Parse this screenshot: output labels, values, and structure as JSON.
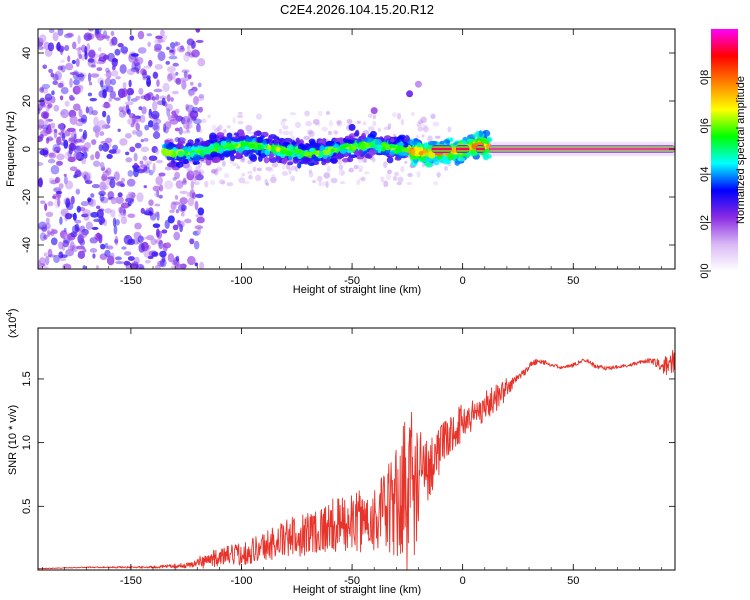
{
  "title": "C2E4.2026.104.15.20.R12",
  "chart_data": [
    {
      "type": "heatmap",
      "xlabel": "Height of straight line (km)",
      "ylabel": "Frequency (Hz)",
      "xlim": [
        -192,
        96
      ],
      "ylim": [
        -50,
        50
      ],
      "xticks": [
        -150,
        -100,
        -50,
        0,
        50
      ],
      "xtick_labels": [
        "-150",
        "-100",
        "-50",
        "0",
        "50"
      ],
      "yticks": [
        -40,
        -20,
        0,
        20,
        40
      ],
      "ytick_labels": [
        "-40",
        "-20",
        "0",
        "20",
        "40"
      ],
      "colorbar": {
        "label": "Normalized spectral amplitude",
        "range": [
          0.0,
          1.0
        ],
        "ticks": [
          0.0,
          0.2,
          0.4,
          0.6,
          0.8
        ],
        "tick_labels": [
          "0.0",
          "0.2",
          "0.4",
          "0.6",
          "0.8"
        ],
        "colormap": [
          "#ffffff",
          "#d9b8f5",
          "#8a2be2",
          "#0000ff",
          "#00ffff",
          "#00ff00",
          "#ffff00",
          "#ff8000",
          "#ff0000",
          "#ff00ff"
        ]
      },
      "features": {
        "scatter_noise_x_range": [
          -192,
          -118
        ],
        "band_center_hz": 0,
        "band_halfwidth_hz": 3,
        "band_start_km": -135,
        "strong_line_start_km": 12,
        "isolated_blobs": [
          {
            "x": -24,
            "y": 23,
            "value": 0.25
          },
          {
            "x": -20,
            "y": 27,
            "value": 0.15
          },
          {
            "x": -40,
            "y": 16,
            "value": 0.2
          },
          {
            "x": -50,
            "y": 9,
            "value": 0.3
          }
        ]
      }
    },
    {
      "type": "line",
      "xlabel": "Height of straight line (km)",
      "ylabel": "SNR (10 * v/v)",
      "y_multiplier_label": "(x10",
      "y_multiplier_exp": "4",
      "xlim": [
        -192,
        96
      ],
      "ylim": [
        0,
        1.9
      ],
      "xticks": [
        -150,
        -100,
        -50,
        0,
        50
      ],
      "xtick_labels": [
        "-150",
        "-100",
        "-50",
        "0",
        "50"
      ],
      "yticks": [
        0.5,
        1.0,
        1.5
      ],
      "ytick_labels": [
        "0.5",
        "1.0",
        "1.5"
      ],
      "color": "#e8332a",
      "envelope": {
        "x": [
          -192,
          -170,
          -140,
          -125,
          -118,
          -110,
          -100,
          -90,
          -80,
          -70,
          -60,
          -50,
          -40,
          -35,
          -30,
          -27,
          -24,
          -20,
          -16,
          -12,
          -8,
          -4,
          0,
          5,
          10,
          15,
          20,
          25,
          30,
          35,
          40,
          45,
          50,
          55,
          60,
          65,
          70,
          75,
          80,
          85,
          90,
          96
        ],
        "base": [
          0.01,
          0.02,
          0.02,
          0.03,
          0.05,
          0.08,
          0.1,
          0.15,
          0.2,
          0.24,
          0.28,
          0.3,
          0.33,
          0.35,
          0.38,
          0.4,
          0.45,
          0.55,
          0.7,
          0.85,
          0.95,
          1.05,
          1.12,
          1.18,
          1.25,
          1.32,
          1.4,
          1.5,
          1.58,
          1.62,
          1.63,
          1.62,
          1.61,
          1.62,
          1.58,
          1.6,
          1.63,
          1.61,
          1.6,
          1.62,
          1.62,
          1.65
        ],
        "amp": [
          0.005,
          0.01,
          0.02,
          0.05,
          0.09,
          0.12,
          0.15,
          0.2,
          0.25,
          0.3,
          0.35,
          0.38,
          0.45,
          0.55,
          0.75,
          1.05,
          1.15,
          0.75,
          0.45,
          0.35,
          0.28,
          0.25,
          0.25,
          0.22,
          0.2,
          0.18,
          0.15,
          0.1,
          0.05,
          0.04,
          0.03,
          0.03,
          0.03,
          0.03,
          0.04,
          0.03,
          0.03,
          0.03,
          0.03,
          0.04,
          0.1,
          0.25
        ]
      }
    }
  ]
}
